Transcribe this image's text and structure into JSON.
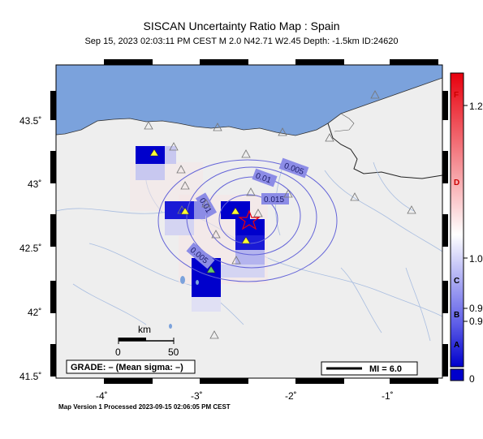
{
  "header": {
    "title": "SISCAN Uncertainty Ratio Map : Spain",
    "subtitle": "Sep 15, 2023 02:03:11 PM CEST   M 2.0   N42.71 W2.45   Depth: -1.5km   ID:24620"
  },
  "axes": {
    "x_ticks": [
      "-4˚",
      "-3˚",
      "-2˚",
      "-1˚"
    ],
    "y_ticks": [
      "43.5˚",
      "43˚",
      "42.5˚",
      "42˚",
      "41.5˚"
    ]
  },
  "scale_bar": {
    "unit": "km",
    "start": "0",
    "end": "50"
  },
  "grade_box": {
    "text": "GRADE: – (Mean sigma: –)"
  },
  "mi_box": {
    "text": "MI = 6.0"
  },
  "contours": {
    "labels": [
      "0.005",
      "0.01",
      "0.015",
      "0.01",
      "0.005"
    ]
  },
  "colorbar": {
    "grades": [
      "F",
      "D",
      "C",
      "B",
      "A"
    ],
    "values": [
      "1.2",
      "1.0",
      "0.9",
      "0.9",
      "0"
    ],
    "colors": {
      "top": "#e8000d",
      "mid": "#ffffff",
      "bottom": "#0000cc"
    }
  },
  "footer": {
    "text": "Map Version 1 Processed 2023-09-15 02:06:05 PM CEST"
  },
  "colors": {
    "sea": "#7ba2dc",
    "land": "#eeeeee",
    "river": "#a8bde0",
    "epicenter": "#e8000d",
    "station": "#ffff33"
  }
}
